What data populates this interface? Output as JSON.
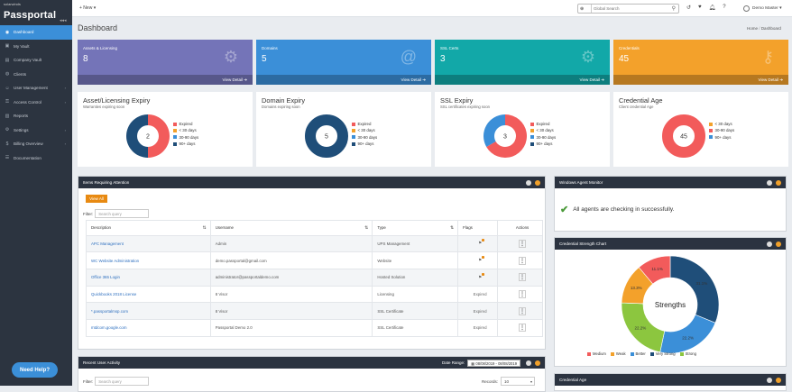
{
  "app": {
    "logo_small": "solarwinds",
    "logo_name": "Passportal",
    "collapse_icon": "menu-collapse",
    "need_help": "Need Help?"
  },
  "sidebar": {
    "items": [
      {
        "label": "Dashboard",
        "icon": "dashboard-icon",
        "active": true,
        "caret": false
      },
      {
        "label": "My Vault",
        "icon": "vault-icon",
        "active": false,
        "caret": false
      },
      {
        "label": "Company Vault",
        "icon": "company-vault-icon",
        "active": false,
        "caret": false
      },
      {
        "label": "Clients",
        "icon": "clients-icon",
        "active": false,
        "caret": false
      },
      {
        "label": "User Management",
        "icon": "user-management-icon",
        "active": false,
        "caret": true
      },
      {
        "label": "Access Control",
        "icon": "access-control-icon",
        "active": false,
        "caret": true
      },
      {
        "label": "Reports",
        "icon": "reports-icon",
        "active": false,
        "caret": false
      },
      {
        "label": "Settings",
        "icon": "settings-icon",
        "active": false,
        "caret": true
      },
      {
        "label": "Billing Overview",
        "icon": "billing-icon",
        "active": false,
        "caret": true
      },
      {
        "label": "Documentation",
        "icon": "documentation-icon",
        "active": false,
        "caret": false
      }
    ]
  },
  "topbar": {
    "new_label": "+ New ▾",
    "search_placeholder": "Global Search",
    "user_name": "Demo Master ▾"
  },
  "page": {
    "title": "Dashboard",
    "breadcrumb_home": "Home",
    "breadcrumb_sep": "/",
    "breadcrumb_current": "Dashboard"
  },
  "stats": [
    {
      "label": "Assets & Licensing",
      "value": "8",
      "footer": "View Detail",
      "color": "#7474b8"
    },
    {
      "label": "Domains",
      "value": "5",
      "footer": "View Detail",
      "color": "#3b8fd8"
    },
    {
      "label": "SSL Certs",
      "value": "3",
      "footer": "View Detail",
      "color": "#12a8a8"
    },
    {
      "label": "Credentials",
      "value": "45",
      "footer": "View Detail",
      "color": "#f3a12b"
    }
  ],
  "expiry_cards": [
    {
      "title": "Asset/Licensing Expiry",
      "subtitle": "Warranties expiring soon",
      "center": "2",
      "legend": [
        "Expired",
        "< 30 days",
        "30-90 days",
        "90+ days"
      ],
      "segments": [
        {
          "value": 50,
          "color": "#f25b5b"
        },
        {
          "value": 50,
          "color": "#1f4e79"
        }
      ]
    },
    {
      "title": "Domain Expiry",
      "subtitle": "Domains expiring soon",
      "center": "5",
      "legend": [
        "Expired",
        "< 30 days",
        "30-90 days",
        "90+ days"
      ],
      "segments": [
        {
          "value": 100,
          "color": "#1f4e79"
        }
      ]
    },
    {
      "title": "SSL Expiry",
      "subtitle": "SSL certificates expiring soon",
      "center": "3",
      "legend": [
        "Expired",
        "< 30 days",
        "30-90 days",
        "90+ days"
      ],
      "segments": [
        {
          "value": 66.7,
          "color": "#f25b5b"
        },
        {
          "value": 33.3,
          "color": "#3b8fd8"
        }
      ]
    },
    {
      "title": "Credential Age",
      "subtitle": "Client credential Age",
      "center": "45",
      "legend": [
        "< 30 days",
        "30-90 days",
        "90+ days"
      ],
      "segments": [
        {
          "value": 100,
          "color": "#f25b5b"
        }
      ]
    }
  ],
  "legend_colors": {
    "expiry": [
      "#f25b5b",
      "#f3a12b",
      "#3b8fd8",
      "#1f4e79"
    ],
    "age": [
      "#f3a12b",
      "#f25b5b",
      "#3b8fd8"
    ]
  },
  "items_panel": {
    "title": "Items Requiring Attention",
    "view_all": "View All",
    "filter_label": "Filter:",
    "filter_placeholder": "Search query",
    "columns": [
      "Description",
      "Username",
      "Type",
      "Flags",
      "Actions"
    ],
    "rows": [
      {
        "description": "APC Management",
        "username": "Admin",
        "type": "UPS Management",
        "flags": "flag-icon",
        "actions": "⋮"
      },
      {
        "description": "WC Website Administration",
        "username": "demo.passportal@gmail.com",
        "type": "Website",
        "flags": "flag-icon",
        "actions": "⋮"
      },
      {
        "description": "Office 365 Login",
        "username": "administrator@passportaldemo.com",
        "type": "Hosted Solution",
        "flags": "flag-icon",
        "actions": "⋮"
      },
      {
        "description": "Quickbooks 2018 License",
        "username": "8 Visor",
        "type": "Licensing",
        "flags": "Expired",
        "actions": "⋮"
      },
      {
        "description": "*.passportalmsp.com",
        "username": "8 Visor",
        "type": "SSL Certificate",
        "flags": "Expired",
        "actions": "⋮"
      },
      {
        "description": "mtdcom.google.com",
        "username": "Passportal Demo 2.0",
        "type": "SSL Certificate",
        "flags": "Expired",
        "actions": "⋮"
      }
    ]
  },
  "activity_panel": {
    "title": "Recent User Activity",
    "date_range_label": "Date Range:",
    "date_range_value": "08/08/2019 - 08/08/2019",
    "filter_label": "Filter:",
    "filter_placeholder": "Search query",
    "records_label": "Records:",
    "records_value": "10"
  },
  "agent_panel": {
    "title": "Windows Agent Monitor",
    "message": "All agents are checking in successfully."
  },
  "strength_panel": {
    "title": "Credential Strength Chart",
    "center": "Strengths",
    "legend": [
      {
        "label": "Medium",
        "color": "#f25b5b"
      },
      {
        "label": "Weak",
        "color": "#f3a12b"
      },
      {
        "label": "Better",
        "color": "#3b8fd8"
      },
      {
        "label": "Very Strong",
        "color": "#1f4e79"
      },
      {
        "label": "Strong",
        "color": "#8cc63f"
      }
    ]
  },
  "chart_data": {
    "type": "pie",
    "title": "Credential Strength Chart",
    "categories": [
      "Very Strong",
      "Better",
      "Strong",
      "Weak",
      "Medium"
    ],
    "values": [
      31.1,
      22.2,
      22.2,
      13.3,
      11.1
    ],
    "labels": [
      "31.1%",
      "22.2%",
      "22.2%",
      "13.3%",
      "11.1%"
    ],
    "colors": [
      "#1f4e79",
      "#3b8fd8",
      "#8cc63f",
      "#f3a12b",
      "#f25b5b"
    ]
  },
  "age_panel": {
    "title": "Credential Age"
  }
}
